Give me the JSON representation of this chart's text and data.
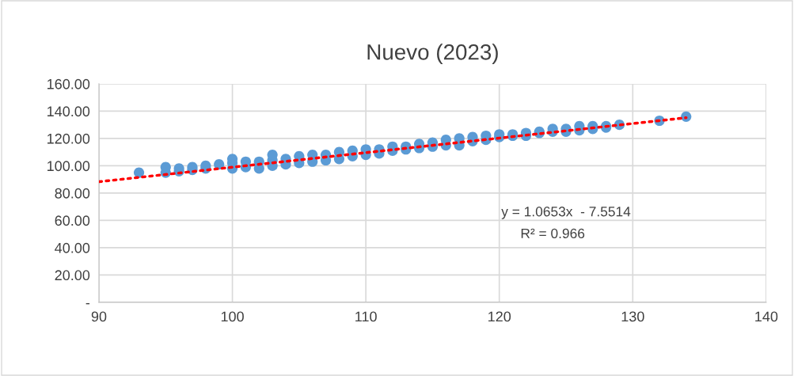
{
  "chart_data": {
    "type": "scatter",
    "title": "Nuevo (2023)",
    "xlim": [
      90,
      140
    ],
    "xticks": [
      90,
      100,
      110,
      120,
      130,
      140
    ],
    "ylim": [
      0,
      160
    ],
    "yticks": [
      {
        "value": 0,
        "label": "-"
      },
      {
        "value": 20,
        "label": "20.00"
      },
      {
        "value": 40,
        "label": "40.00"
      },
      {
        "value": 60,
        "label": "60.00"
      },
      {
        "value": 80,
        "label": "80.00"
      },
      {
        "value": 100,
        "label": "100.00"
      },
      {
        "value": 120,
        "label": "120.00"
      },
      {
        "value": 140,
        "label": "140.00"
      },
      {
        "value": 160,
        "label": "160.00"
      }
    ],
    "grid": true,
    "marker": "circle",
    "series": [
      {
        "color": "#5b9bd5",
        "x": [
          93,
          95,
          95,
          96,
          96,
          97,
          97,
          98,
          98,
          99,
          100,
          100,
          100,
          101,
          101,
          102,
          102,
          103,
          103,
          103,
          104,
          104,
          105,
          105,
          106,
          106,
          107,
          107,
          108,
          108,
          109,
          109,
          110,
          110,
          111,
          111,
          112,
          112,
          113,
          113,
          114,
          114,
          115,
          115,
          116,
          116,
          117,
          117,
          118,
          118,
          119,
          119,
          120,
          120,
          121,
          121,
          122,
          122,
          123,
          123,
          124,
          124,
          125,
          125,
          126,
          126,
          127,
          127,
          128,
          128,
          129,
          132,
          134
        ],
        "values": [
          95,
          95,
          99,
          96,
          98,
          97,
          99,
          98,
          100,
          101,
          98,
          102,
          105,
          99,
          103,
          98,
          103,
          100,
          104,
          108,
          101,
          105,
          102,
          107,
          103,
          108,
          104,
          108,
          105,
          110,
          107,
          111,
          108,
          112,
          109,
          112,
          111,
          114,
          112,
          114,
          113,
          116,
          114,
          117,
          115,
          119,
          115,
          120,
          118,
          121,
          119,
          122,
          121,
          123,
          122,
          123,
          122,
          124,
          124,
          125,
          125,
          127,
          125,
          127,
          126,
          129,
          127,
          129,
          128,
          129,
          130,
          133,
          136
        ]
      },
      {
        "type": "line",
        "color": "#ff0000",
        "line_style": "dotted",
        "marker": "none",
        "x": [
          90,
          134
        ],
        "values": [
          88.3,
          135.2
        ]
      }
    ],
    "annotations": [
      "y = 1.0653x  - 7.5514",
      "R² = 0.966"
    ]
  }
}
